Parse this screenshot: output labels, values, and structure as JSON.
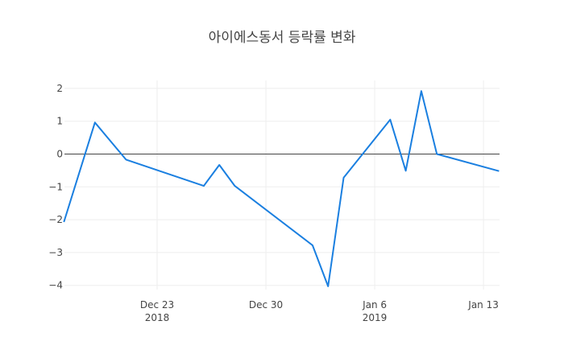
{
  "chart_data": {
    "type": "line",
    "title": "아이에스동서 등락률 변화",
    "xlabel": "",
    "ylabel": "",
    "ylim": [
      -4.1,
      2.25
    ],
    "grid": true,
    "legend": "none",
    "x": [
      "2018-12-17",
      "2018-12-19",
      "2018-12-21",
      "2018-12-26",
      "2018-12-27",
      "2018-12-28",
      "2019-01-02",
      "2019-01-03",
      "2019-01-04",
      "2019-01-07",
      "2019-01-08",
      "2019-01-09",
      "2019-01-10",
      "2019-01-14"
    ],
    "x_day_offsets": [
      -6,
      -4,
      -2,
      3,
      4,
      5,
      10,
      11,
      12,
      15,
      16,
      17,
      18,
      22
    ],
    "series": [
      {
        "name": "등락률",
        "color": "#1a7fe0",
        "values": [
          -2.07,
          0.96,
          -0.17,
          -0.97,
          -0.33,
          -0.97,
          -2.78,
          -4.03,
          -0.72,
          1.05,
          -0.51,
          1.92,
          0.0,
          -0.52
        ]
      }
    ],
    "y_ticks": [
      {
        "value": 2,
        "label": "2"
      },
      {
        "value": 1,
        "label": "1"
      },
      {
        "value": 0,
        "label": "0"
      },
      {
        "value": -1,
        "label": "−1"
      },
      {
        "value": -2,
        "label": "−2"
      },
      {
        "value": -3,
        "label": "−3"
      },
      {
        "value": -4,
        "label": "−4"
      }
    ],
    "x_ticks": [
      {
        "day_offset": 0,
        "label": "Dec 23",
        "sublabel": "2018"
      },
      {
        "day_offset": 7,
        "label": "Dec 30",
        "sublabel": ""
      },
      {
        "day_offset": 14,
        "label": "Jan 6",
        "sublabel": "2019"
      },
      {
        "day_offset": 21,
        "label": "Jan 13",
        "sublabel": ""
      }
    ]
  },
  "style": {
    "grid_color": "#eeeeee",
    "zero_line_color": "#444444",
    "tick_color": "#444444"
  }
}
